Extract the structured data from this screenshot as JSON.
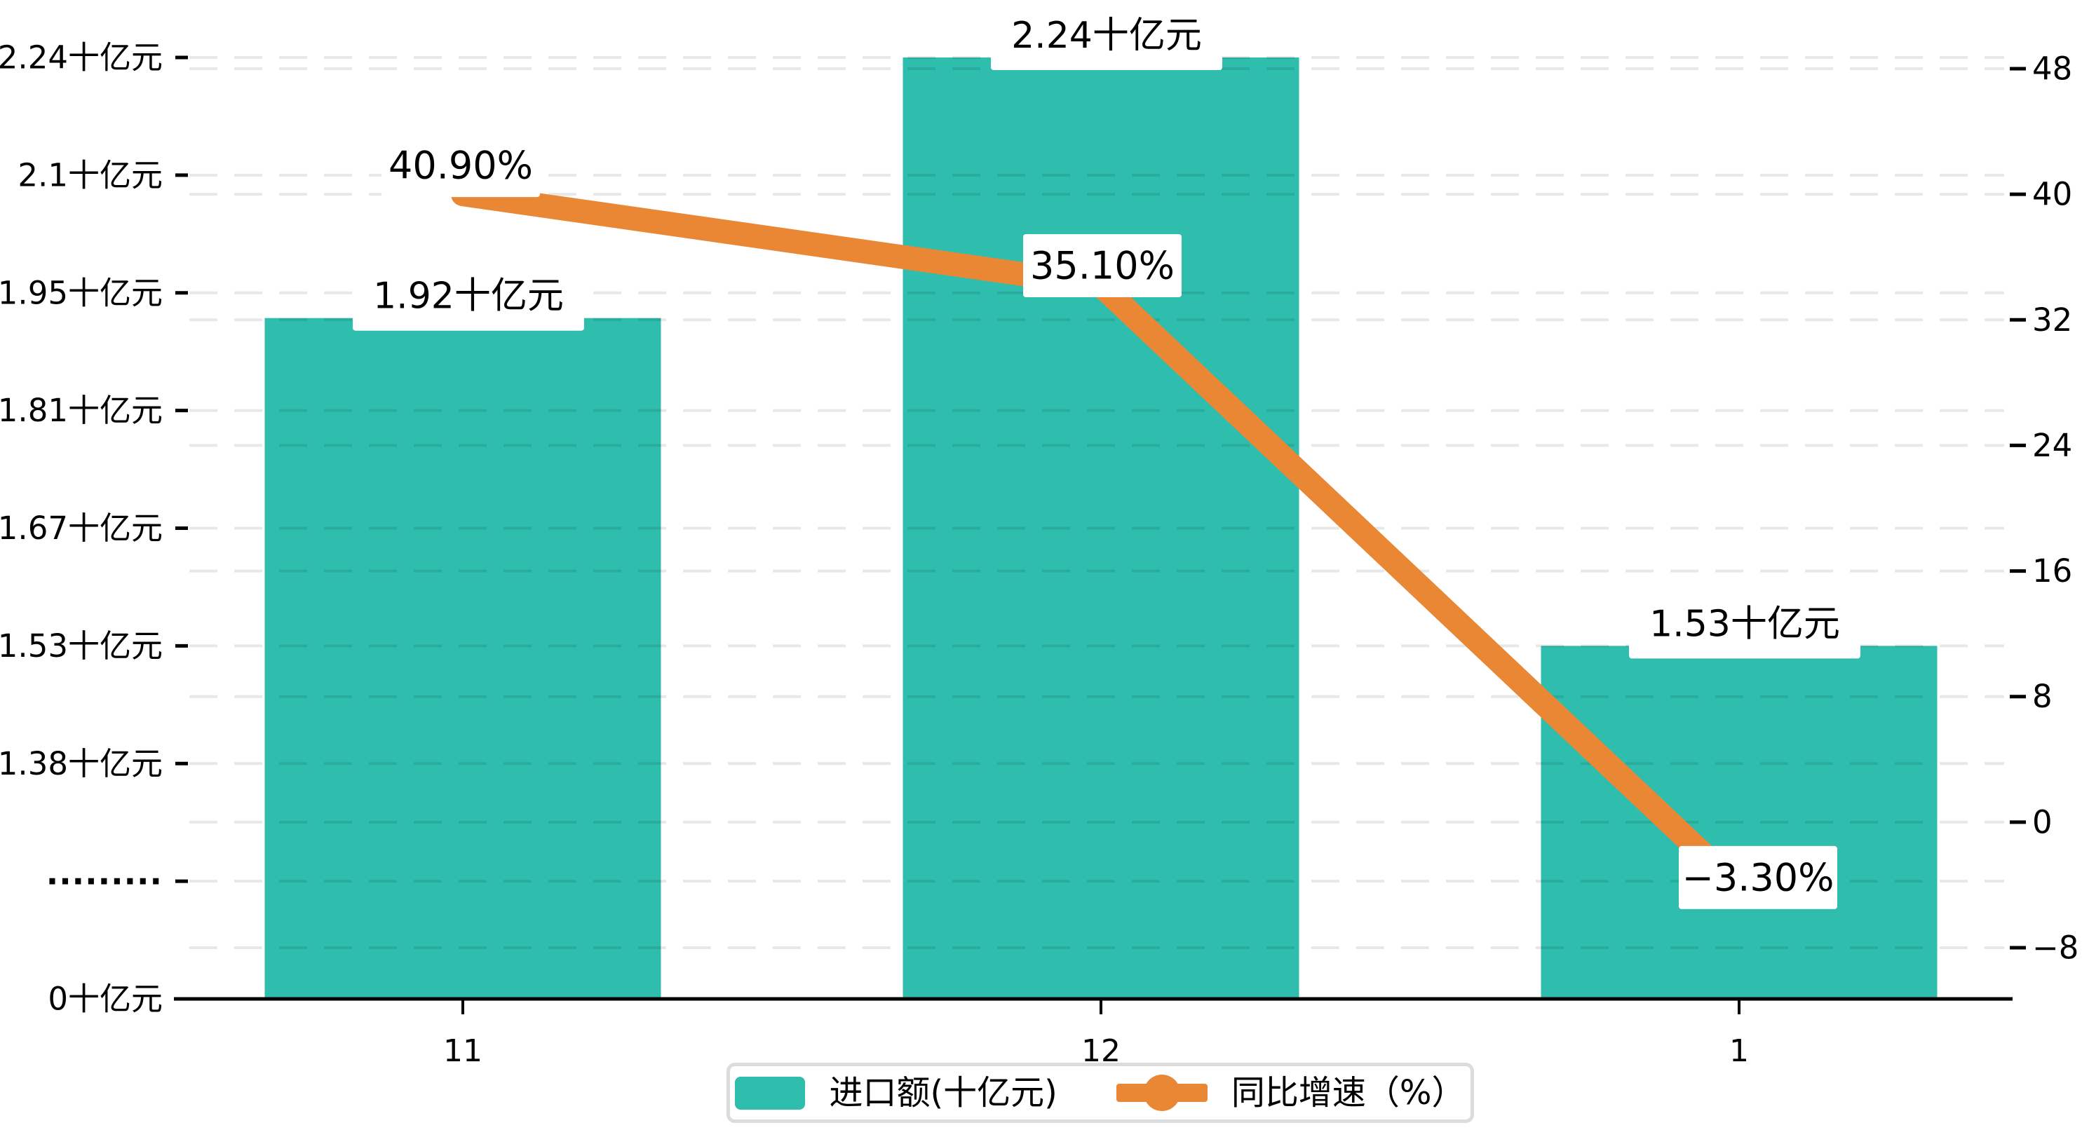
{
  "chart_data": {
    "type": "bar",
    "subtype": "bar-line-combo",
    "categories": [
      "11",
      "12",
      "1"
    ],
    "series": [
      {
        "name": "进口额(十亿元)",
        "type": "bar",
        "values": [
          1.92,
          2.24,
          1.53
        ],
        "labels": [
          "1.92十亿元",
          "2.24十亿元",
          "1.53十亿元"
        ],
        "color": "#2FBEAD"
      },
      {
        "name": "同比增速（%）",
        "type": "line",
        "values": [
          40.9,
          35.1,
          -3.3
        ],
        "labels": [
          "40.90%",
          "35.10%",
          "−3.30%"
        ],
        "color": "#E98734"
      }
    ],
    "left_axis": {
      "tick_labels": [
        "0十亿元",
        "·········",
        "1.38十亿元",
        "1.53十亿元",
        "1.67十亿元",
        "1.81十亿元",
        "1.95十亿元",
        "2.1十亿元",
        "2.24十亿元"
      ],
      "tick_values": [
        0,
        null,
        1.38,
        1.53,
        1.67,
        1.81,
        1.95,
        2.1,
        2.24
      ],
      "broken_axis": true
    },
    "right_axis": {
      "ticks": [
        48,
        40,
        32,
        24,
        16,
        8,
        0,
        -8
      ],
      "range": [
        -8,
        48
      ]
    },
    "legend": {
      "position": "bottom-center",
      "items": [
        "进口额(十亿元)",
        "同比增速（%）"
      ]
    },
    "grid": {
      "dashed": true,
      "on": true
    },
    "colors": {
      "bar": "#2FBEAD",
      "line": "#E98734",
      "text": "#000000",
      "axis": "#000000",
      "gridline": "rgba(0,0,0,0.09)",
      "label_background": "#ffffff",
      "legend_border": "#dcdcdc"
    }
  }
}
